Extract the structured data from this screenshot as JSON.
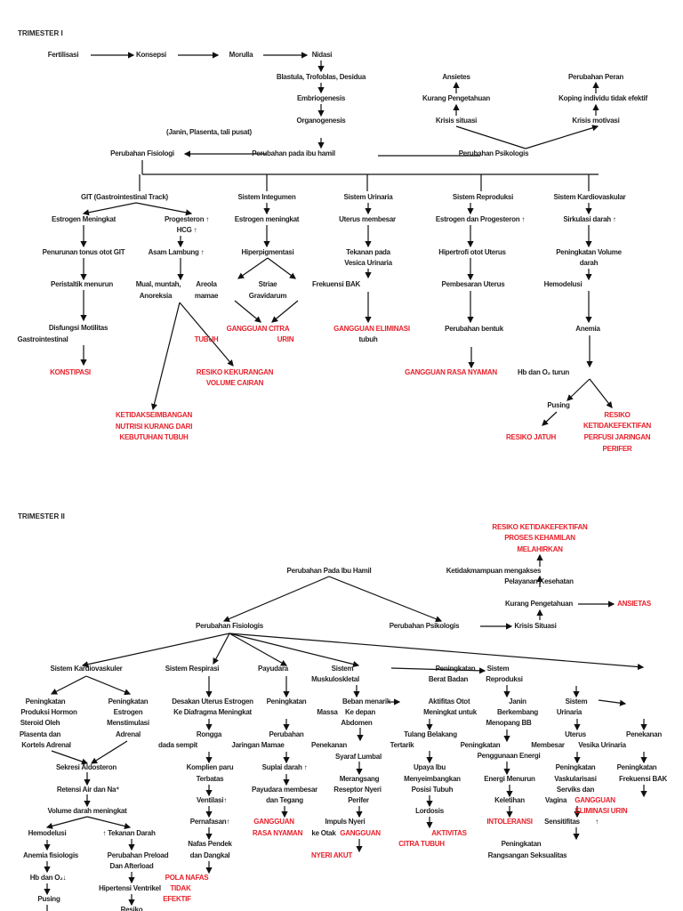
{
  "colors": {
    "text": "#222222",
    "diagnosis": "#e8202a",
    "arrow": "#111111"
  },
  "t1": {
    "title": "TRIMESTER I",
    "nodes": [
      {
        "id": "fert",
        "text": "Fertilisasi"
      },
      {
        "id": "kons",
        "text": "Konsepsi"
      },
      {
        "id": "moru",
        "text": "Morulla"
      },
      {
        "id": "nida",
        "text": "Nidasi"
      },
      {
        "id": "blas",
        "text": "Blastula, Trofoblas, Desidua"
      },
      {
        "id": "embr",
        "text": "Embriogenesis"
      },
      {
        "id": "orga",
        "text": "Organogenesis"
      },
      {
        "id": "jani",
        "text": "(Janin, Plasenta, tali pusat)"
      },
      {
        "id": "pfis",
        "text": "Perubahan Fisiologi"
      },
      {
        "id": "pibu",
        "text": "Perubahan pada ibu hamil"
      },
      {
        "id": "ppsi",
        "text": "Perubahan Psikologis"
      },
      {
        "id": "ansi",
        "text": "Ansietes"
      },
      {
        "id": "kura",
        "text": "Kurang Pengetahuan"
      },
      {
        "id": "kris",
        "text": "Krisis situasi"
      },
      {
        "id": "pera",
        "text": "Perubahan Peran"
      },
      {
        "id": "kopi",
        "text": "Koping individu tidak efektif"
      },
      {
        "id": "krim",
        "text": "Krisis motivasi"
      },
      {
        "id": "git",
        "text": "GIT (Gastrointestinal Track)"
      },
      {
        "id": "sint",
        "text": "Sistem Integumen"
      },
      {
        "id": "suri",
        "text": "Sistem Urinaria"
      },
      {
        "id": "srep",
        "text": "Sistem Reproduksi"
      },
      {
        "id": "skar",
        "text": "Sistem  Kardiovaskular"
      },
      {
        "id": "estm",
        "text": "Estrogen Meningkat"
      },
      {
        "id": "prog",
        "text": "Progesteron ↑"
      },
      {
        "id": "hcg",
        "text": "HCG ↑"
      },
      {
        "id": "estm2",
        "text": "Estrogen meningkat"
      },
      {
        "id": "uter",
        "text": "Uterus membesar"
      },
      {
        "id": "estp",
        "text": "Estrogen dan Progesteron ↑"
      },
      {
        "id": "sirk",
        "text": "Sirkulasi darah ↑"
      },
      {
        "id": "penu",
        "text": "Penurunan tonus otot GIT"
      },
      {
        "id": "asam",
        "text": "Asam Lambung ↑"
      },
      {
        "id": "hipe",
        "text": "Hiperpigmentasi"
      },
      {
        "id": "teka1",
        "text": "Tekanan pada"
      },
      {
        "id": "teka2",
        "text": "Vesica Urinaria"
      },
      {
        "id": "hipt",
        "text": "Hipertrofi otot Uterus"
      },
      {
        "id": "pvol1",
        "text": "Peningkatan Volume"
      },
      {
        "id": "pvol2",
        "text": "darah"
      },
      {
        "id": "peri",
        "text": "Peristaltik menurun"
      },
      {
        "id": "mual1",
        "text": "Mual, muntah,"
      },
      {
        "id": "mual2",
        "text": "Anoreksia"
      },
      {
        "id": "areo1",
        "text": "Areola"
      },
      {
        "id": "areo2",
        "text": "mamae"
      },
      {
        "id": "stri1",
        "text": "Striae"
      },
      {
        "id": "stri2",
        "text": "Gravidarum"
      },
      {
        "id": "frek",
        "text": "Frekuensi BAK"
      },
      {
        "id": "pemb",
        "text": "Pembesaran Uterus"
      },
      {
        "id": "hemo",
        "text": "Hemodelusi"
      },
      {
        "id": "disf1",
        "text": "Disfungsi Motilitas"
      },
      {
        "id": "disf2",
        "text": "Gastrointestinal"
      },
      {
        "id": "gcit1",
        "text": "GANGGUAN CITRA",
        "kind": "diagnosis"
      },
      {
        "id": "gcit2",
        "text": "TUBUH",
        "kind": "diagnosis"
      },
      {
        "id": "gcit3",
        "text": "URIN",
        "kind": "diagnosis"
      },
      {
        "id": "gelm",
        "text": "GANGGUAN ELIMINASI",
        "kind": "diagnosis"
      },
      {
        "id": "tubu",
        "text": "tubuh"
      },
      {
        "id": "pbent",
        "text": "Perubahan bentuk"
      },
      {
        "id": "anem",
        "text": "Anemia"
      },
      {
        "id": "kons2",
        "text": "KONSTIPASI",
        "kind": "diagnosis"
      },
      {
        "id": "rkek1",
        "text": "RESIKO KEKURANGAN",
        "kind": "diagnosis"
      },
      {
        "id": "rkek2",
        "text": "VOLUME CAIRAN",
        "kind": "diagnosis"
      },
      {
        "id": "grn",
        "text": "GANGGUAN RASA NYAMAN",
        "kind": "diagnosis"
      },
      {
        "id": "hbo",
        "text": "Hb dan O₂ turun"
      },
      {
        "id": "keti1",
        "text": "KETIDAKSEIMBANGAN",
        "kind": "diagnosis"
      },
      {
        "id": "keti2",
        "text": "NUTRISI KURANG DARI",
        "kind": "diagnosis"
      },
      {
        "id": "keti3",
        "text": "KEBUTUHAN TUBUH",
        "kind": "diagnosis"
      },
      {
        "id": "pusi",
        "text": "Pusing"
      },
      {
        "id": "rkp1",
        "text": "RESIKO",
        "kind": "diagnosis"
      },
      {
        "id": "rkp2",
        "text": "KETIDAKEFEKTIFAN",
        "kind": "diagnosis"
      },
      {
        "id": "rkp3",
        "text": "PERFUSI JARINGAN",
        "kind": "diagnosis"
      },
      {
        "id": "rkp4",
        "text": "PERIFER",
        "kind": "diagnosis"
      },
      {
        "id": "rjat",
        "text": "RESIKO JATUH",
        "kind": "diagnosis"
      }
    ]
  },
  "t2": {
    "title": "TRIMESTER II",
    "nodes": [
      {
        "id": "rpk1",
        "text": "RESIKO KETIDAKEFEKTIFAN",
        "kind": "diagnosis"
      },
      {
        "id": "rpk2",
        "text": "PROSES KEHAMILAN",
        "kind": "diagnosis"
      },
      {
        "id": "rpk3",
        "text": "MELAHIRKAN",
        "kind": "diagnosis"
      },
      {
        "id": "ketm",
        "text": "Ketidakmampuan mengakses"
      },
      {
        "id": "pela",
        "text": "Pelayanan Kesehatan"
      },
      {
        "id": "kura",
        "text": "Kurang Pengetahuan"
      },
      {
        "id": "ansi",
        "text": "ANSIETAS",
        "kind": "diagnosis"
      },
      {
        "id": "pibu",
        "text": "Perubahan Pada Ibu Hamil"
      },
      {
        "id": "pfis",
        "text": "Perubahan Fisiologis"
      },
      {
        "id": "ppsi",
        "text": "Perubahan Psikologis"
      },
      {
        "id": "kris",
        "text": "Krisis Situasi"
      },
      {
        "id": "skar",
        "text": "Sistem Kardiovaskuler"
      },
      {
        "id": "sres",
        "text": "Sistem Respirasi"
      },
      {
        "id": "payu",
        "text": "Payudara"
      },
      {
        "id": "smus1",
        "text": "Sistem"
      },
      {
        "id": "smus2",
        "text": "Muskuloskletal"
      },
      {
        "id": "pbb1",
        "text": "Peningkatan"
      },
      {
        "id": "pbb2",
        "text": "Berat Badan"
      },
      {
        "id": "srep1",
        "text": "Sistem"
      },
      {
        "id": "srep2",
        "text": "Reproduksi"
      },
      {
        "id": "k1a",
        "text": "Peningkatan"
      },
      {
        "id": "k1b",
        "text": "Produksi Hormon"
      },
      {
        "id": "k1c",
        "text": "Steroid Oleh"
      },
      {
        "id": "k1d",
        "text": "Plasenta dan"
      },
      {
        "id": "k1e",
        "text": "Kortels Adrenal"
      },
      {
        "id": "k2a",
        "text": "Peningkatan"
      },
      {
        "id": "k2b",
        "text": "Estrogen"
      },
      {
        "id": "k2c",
        "text": "Menstimulasi"
      },
      {
        "id": "k2d",
        "text": "Adrenal"
      },
      {
        "id": "sekr",
        "text": "Sekresi Aldosteron"
      },
      {
        "id": "rete",
        "text": "Retensi Air dan Na⁺"
      },
      {
        "id": "vold",
        "text": "Volume darah meningkat"
      },
      {
        "id": "hemo",
        "text": "Hemodelusi"
      },
      {
        "id": "tekd",
        "text": "↑ Tekanan Darah"
      },
      {
        "id": "anef",
        "text": "Anemia fisiologis"
      },
      {
        "id": "pre1",
        "text": "Perubahan Preload"
      },
      {
        "id": "pre2",
        "text": "Dan Afterload"
      },
      {
        "id": "hbo",
        "text": "Hb dan O₂↓"
      },
      {
        "id": "hipv",
        "text": "Hipertensi Ventrikel"
      },
      {
        "id": "pusi",
        "text": "Pusing"
      },
      {
        "id": "resi",
        "text": "Resiko"
      },
      {
        "id": "des1",
        "text": "Desakan Uterus Estrogen"
      },
      {
        "id": "des2",
        "text": "Ke Diafragma    Meningkat"
      },
      {
        "id": "ron1",
        "text": "Rongga"
      },
      {
        "id": "ron2",
        "text": "dada sempit"
      },
      {
        "id": "kom1",
        "text": "Komplien paru"
      },
      {
        "id": "kom2",
        "text": "Terbatas"
      },
      {
        "id": "vent",
        "text": "Ventilasi↑"
      },
      {
        "id": "pern",
        "text": "Pernafasan↑"
      },
      {
        "id": "naf1",
        "text": "Nafas Pendek"
      },
      {
        "id": "naf2",
        "text": "dan Dangkal"
      },
      {
        "id": "pol1",
        "text": "POLA NAFAS",
        "kind": "diagnosis"
      },
      {
        "id": "pol2",
        "text": "TIDAK",
        "kind": "diagnosis"
      },
      {
        "id": "pol3",
        "text": "EFEKTIF",
        "kind": "diagnosis"
      },
      {
        "id": "pm1",
        "text": "Peningkatan"
      },
      {
        "id": "pm2",
        "text": "Massa"
      },
      {
        "id": "pj1",
        "text": "Perubahan"
      },
      {
        "id": "pj2",
        "text": "Jaringan Mamae"
      },
      {
        "id": "supl",
        "text": "Suplai darah ↑"
      },
      {
        "id": "pym1",
        "text": "Payudara membesar"
      },
      {
        "id": "pym2",
        "text": "dan Tegang"
      },
      {
        "id": "grn1",
        "text": "GANGGUAN",
        "kind": "diagnosis"
      },
      {
        "id": "grn2",
        "text": "RASA NYAMAN",
        "kind": "diagnosis"
      },
      {
        "id": "keot",
        "text": "ke Otak"
      },
      {
        "id": "gang",
        "text": "GANGGUAN",
        "kind": "diagnosis"
      },
      {
        "id": "beb1",
        "text": "Beban menarik"
      },
      {
        "id": "beb2",
        "text": "Ke depan"
      },
      {
        "id": "beb3",
        "text": "Abdomen"
      },
      {
        "id": "pen1",
        "text": "Penekanan"
      },
      {
        "id": "pen2",
        "text": "Syaraf Lumbal"
      },
      {
        "id": "mer1",
        "text": "Merangsang"
      },
      {
        "id": "mer2",
        "text": "Reseptor Nyeri"
      },
      {
        "id": "mer3",
        "text": "Perifer"
      },
      {
        "id": "imp",
        "text": "Impuls Nyeri"
      },
      {
        "id": "nyer",
        "text": "NYERI AKUT",
        "kind": "diagnosis"
      },
      {
        "id": "akt1",
        "text": "Aktifitas Otot"
      },
      {
        "id": "akt2",
        "text": "Meningkat untuk"
      },
      {
        "id": "tul1",
        "text": "Tulang Belakang"
      },
      {
        "id": "tul2",
        "text": "Tertarik"
      },
      {
        "id": "upa1",
        "text": "Upaya Ibu"
      },
      {
        "id": "upa2",
        "text": "Menyeimbangkan"
      },
      {
        "id": "upa3",
        "text": "Posisi Tubuh"
      },
      {
        "id": "lord",
        "text": "Lordosis"
      },
      {
        "id": "aktv",
        "text": "AKTIVITAS",
        "kind": "diagnosis"
      },
      {
        "id": "citr",
        "text": "CITRA TUBUH",
        "kind": "diagnosis"
      },
      {
        "id": "jan1",
        "text": "Janin"
      },
      {
        "id": "jan2",
        "text": "Berkembang"
      },
      {
        "id": "jan3",
        "text": "Menopang BB"
      },
      {
        "id": "pen3",
        "text": "Peningkatan"
      },
      {
        "id": "pen4",
        "text": "Penggunaan Energi"
      },
      {
        "id": "ener",
        "text": "Energi Menurun"
      },
      {
        "id": "kele",
        "text": "Keletihan"
      },
      {
        "id": "into",
        "text": "INTOLERANSI",
        "kind": "diagnosis"
      },
      {
        "id": "sur1",
        "text": "Sistem"
      },
      {
        "id": "sur2",
        "text": "Urinaria"
      },
      {
        "id": "ute1",
        "text": "Uterus"
      },
      {
        "id": "ute2",
        "text": "Membesar"
      },
      {
        "id": "vesi",
        "text": "Vesika Urinaria"
      },
      {
        "id": "pek1",
        "text": "Penekanan"
      },
      {
        "id": "vas1",
        "text": "Peningkatan"
      },
      {
        "id": "vas2",
        "text": "Vaskularisasi"
      },
      {
        "id": "vas3",
        "text": "Serviks dan"
      },
      {
        "id": "vas4",
        "text": "Vagina"
      },
      {
        "id": "geu1",
        "text": "GANGGUAN",
        "kind": "diagnosis"
      },
      {
        "id": "geu2",
        "text": "ELIMINASI URIN",
        "kind": "diagnosis"
      },
      {
        "id": "sens",
        "text": "Sensitifitas"
      },
      {
        "id": "sarr",
        "text": "↑"
      },
      {
        "id": "rs1",
        "text": "Peningkatan"
      },
      {
        "id": "rs2",
        "text": "Rangsangan Seksualitas"
      },
      {
        "id": "fb1",
        "text": "Peningkatan"
      },
      {
        "id": "fb2",
        "text": "Frekuensi BAK"
      }
    ]
  }
}
